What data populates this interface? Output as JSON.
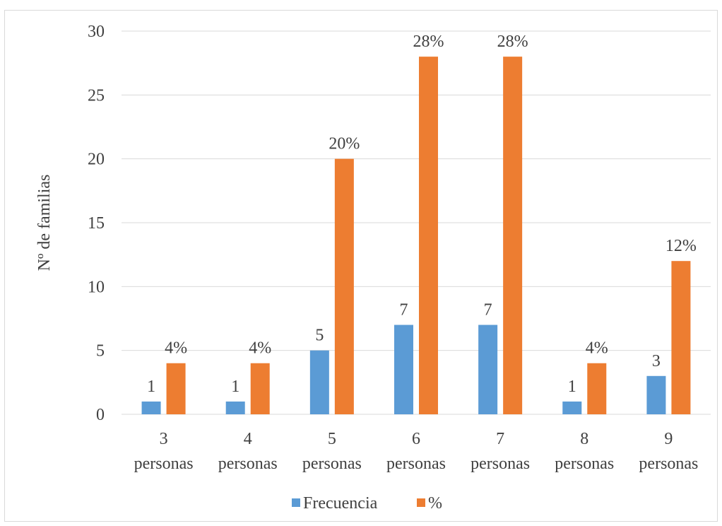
{
  "chart_data": {
    "type": "bar",
    "title": "",
    "xlabel": "",
    "ylabel": "Nº de familias",
    "ylim": [
      0,
      30
    ],
    "yticks": [
      "0",
      "5",
      "10",
      "15",
      "20",
      "25",
      "30"
    ],
    "grid": true,
    "legend_position": "bottom",
    "categories": [
      [
        "3",
        "personas"
      ],
      [
        "4",
        "personas"
      ],
      [
        "5",
        "personas"
      ],
      [
        "6",
        "personas"
      ],
      [
        "7",
        "personas"
      ],
      [
        "8",
        "personas"
      ],
      [
        "9",
        "personas"
      ]
    ],
    "series": [
      {
        "name": "Frecuencia",
        "color": "#5b9bd5",
        "values": [
          1,
          1,
          5,
          7,
          7,
          1,
          3
        ],
        "labels": [
          "1",
          "1",
          "5",
          "7",
          "7",
          "1",
          "3"
        ]
      },
      {
        "name": "%",
        "color": "#ed7d31",
        "values": [
          4,
          4,
          20,
          28,
          28,
          4,
          12
        ],
        "labels": [
          "4%",
          "4%",
          "20%",
          "28%",
          "28%",
          "4%",
          "12%"
        ]
      }
    ],
    "colors": {
      "gridline": "#d9d9d9",
      "text": "#404040"
    }
  }
}
